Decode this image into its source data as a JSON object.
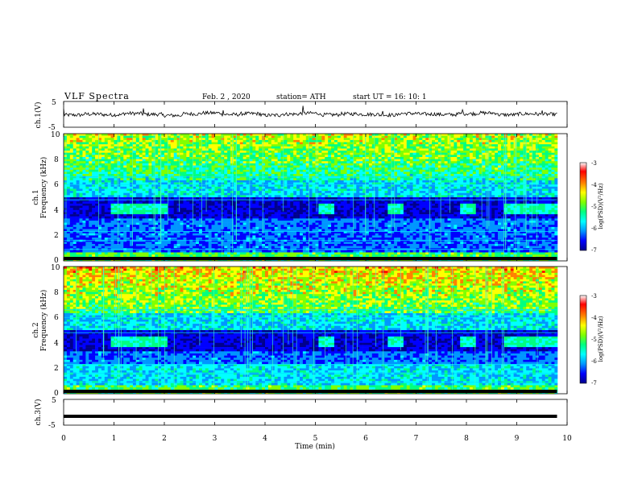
{
  "header": {
    "title": "VLF  Spectra",
    "date": "Feb. 2  , 2020",
    "station": "station= ATH",
    "start_ut": "start  UT  =   16: 10: 1"
  },
  "chart_data": [
    {
      "type": "line",
      "panel": "ch1-waveform",
      "ylabel": "ch.1(V)",
      "ylim": [
        -5,
        5
      ],
      "yticks": [
        "5",
        "-5"
      ],
      "xlim": [
        0,
        10
      ],
      "x_range_data": [
        0,
        9.8
      ],
      "series": [
        {
          "values": [
            -0.3,
            0.1,
            -0.2,
            0.4,
            0.0,
            -0.5,
            0.2,
            0.6,
            -0.1,
            0.3,
            -0.4,
            0.1,
            0.5,
            -0.2,
            0.2,
            0.0,
            -0.3,
            0.4,
            0.1,
            -0.1,
            0.3,
            0.6,
            -0.2,
            0.2,
            0.0
          ]
        }
      ]
    },
    {
      "type": "heatmap",
      "panel": "ch1-spectrogram",
      "ylabel_line1": "ch.1",
      "ylabel_line2": "Frequency  (kHz)",
      "ylim": [
        0,
        10
      ],
      "yticks": [
        "0",
        "2",
        "4",
        "6",
        "8",
        "10"
      ],
      "xlim": [
        0,
        10
      ],
      "colorbar": {
        "label": "log(PSD)(V²/Hz)",
        "range": [
          -7,
          -3
        ],
        "ticks": [
          "-3",
          "-4",
          "-5",
          "-6",
          "-7"
        ]
      },
      "bursts_min": [
        [
          0.95,
          2.05
        ],
        [
          5.05,
          5.35
        ],
        [
          6.45,
          6.75
        ],
        [
          7.85,
          8.2
        ],
        [
          8.75,
          9.8
        ]
      ],
      "burst_freq_khz": 4.0
    },
    {
      "type": "heatmap",
      "panel": "ch2-spectrogram",
      "ylabel_line1": "ch.2",
      "ylabel_line2": "Frequency  (kHz)",
      "ylim": [
        0,
        10
      ],
      "yticks": [
        "0",
        "2",
        "4",
        "6",
        "8",
        "10"
      ],
      "xlim": [
        0,
        10
      ],
      "colorbar": {
        "label": "log(PSD)(V²/Hz)",
        "range": [
          -7,
          -3
        ],
        "ticks": [
          "-3",
          "-4",
          "-5",
          "-6",
          "-7"
        ]
      },
      "bursts_min": [
        [
          0.95,
          2.05
        ],
        [
          5.05,
          5.35
        ],
        [
          6.45,
          6.75
        ],
        [
          7.85,
          8.2
        ],
        [
          8.75,
          9.8
        ]
      ],
      "burst_freq_khz": 4.0
    },
    {
      "type": "line",
      "panel": "ch3-waveform",
      "ylabel": "ch.3(V)",
      "ylim": [
        -5,
        5
      ],
      "yticks": [
        "5",
        "-5"
      ],
      "xlim": [
        0,
        10
      ],
      "x_range_data": [
        0,
        9.8
      ],
      "series": [
        {
          "values": [
            -1.8,
            -1.8
          ]
        }
      ]
    }
  ],
  "x_axis": {
    "label": "Time  (min)",
    "ticks": [
      "0",
      "1",
      "2",
      "3",
      "4",
      "5",
      "6",
      "7",
      "8",
      "9",
      "10"
    ]
  },
  "colors": {
    "colormap": [
      "#00008c",
      "#0000ff",
      "#0096ff",
      "#00ffff",
      "#00ff80",
      "#80ff00",
      "#ffff00",
      "#ff8000",
      "#ff0000",
      "#ffffff"
    ]
  }
}
